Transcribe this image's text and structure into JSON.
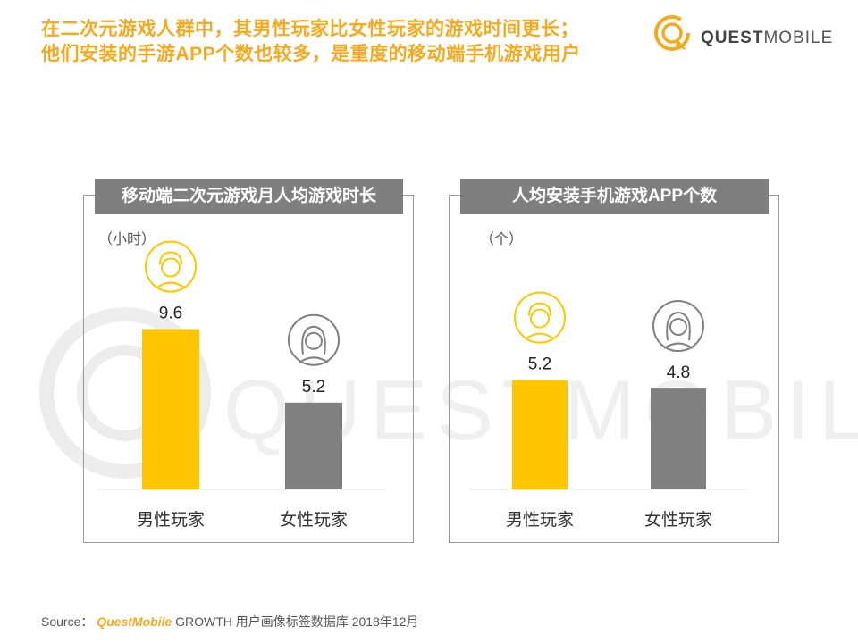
{
  "title": {
    "line1": "在二次元游戏人群中，其男性玩家比女性玩家的游戏时间更长；",
    "line2": "他们安装的手游APP个数也较多，是重度的移动端手机游戏用户"
  },
  "logo": {
    "text_bold": "QUEST",
    "text_regular": "MOBILE",
    "watermark_text": "QUESTMOBILE"
  },
  "colors": {
    "accent": "#F5A91F",
    "male_bar": "#FFC600",
    "female_bar": "#808080",
    "header_bg": "#7f7f7f"
  },
  "chart_data": [
    {
      "type": "bar",
      "title": "移动端二次元游戏月人均游戏时长",
      "unit": "（小时）",
      "categories": [
        "男性玩家",
        "女性玩家"
      ],
      "values": [
        9.6,
        5.2
      ],
      "value_labels": [
        "9.6",
        "5.2"
      ],
      "ylim": [
        0,
        10.7
      ],
      "grid": false,
      "icons": [
        "male-avatar-icon",
        "female-avatar-icon"
      ]
    },
    {
      "type": "bar",
      "title": "人均安装手机游戏APP个数",
      "unit": "（个）",
      "categories": [
        "男性玩家",
        "女性玩家"
      ],
      "values": [
        5.2,
        4.8
      ],
      "value_labels": [
        "5.2",
        "4.8"
      ],
      "ylim": [
        0,
        8.5
      ],
      "grid": false,
      "icons": [
        "male-avatar-icon",
        "female-avatar-icon"
      ]
    }
  ],
  "source": {
    "label": "Source：",
    "brand": "QuestMobile",
    "text": "GROWTH 用户画像标签数据库 2018年12月"
  }
}
